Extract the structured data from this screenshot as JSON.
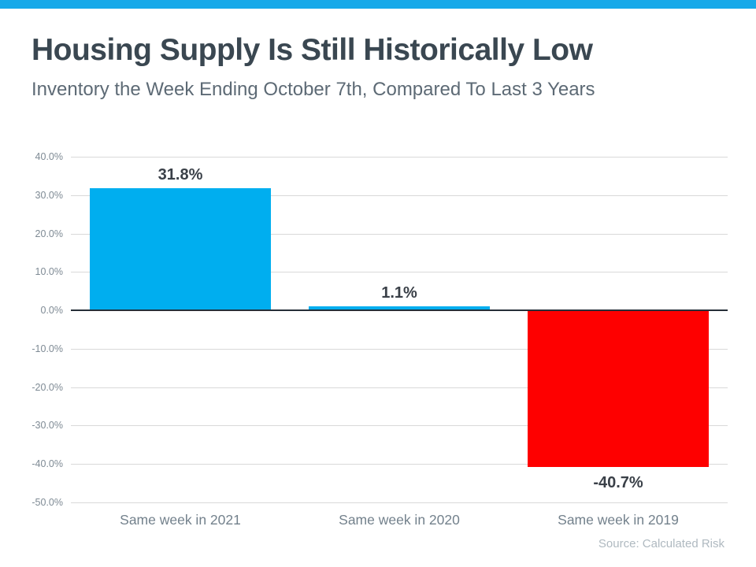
{
  "page": {
    "background": "#FFFFFF",
    "accent_bar_color": "#17A9E9"
  },
  "header": {
    "title": "Housing Supply Is Still Historically Low",
    "subtitle": "Inventory the Week Ending October 7th, Compared To Last 3 Years"
  },
  "chart_data": {
    "type": "bar",
    "title": "",
    "xlabel": "",
    "ylabel": "",
    "categories": [
      "Same week in 2021",
      "Same week in 2020",
      "Same week in 2019"
    ],
    "values": [
      31.8,
      1.1,
      -40.7
    ],
    "value_labels": [
      "31.8%",
      "1.1%",
      "-40.7%"
    ],
    "bar_colors": [
      "#00AEEF",
      "#00AEEF",
      "#FE0000"
    ],
    "ylim": [
      -50,
      40
    ],
    "ytick_step": 10,
    "ytick_labels": [
      "40.0%",
      "30.0%",
      "20.0%",
      "10.0%",
      "0.0%",
      "-10.0%",
      "-20.0%",
      "-30.0%",
      "-40.0%",
      "-50.0%"
    ],
    "grid": true,
    "legend": false,
    "style": {
      "grid_color": "#D9D9D9",
      "zero_line_color": "#262F38",
      "tick_label_color": "#7E8A94",
      "category_label_color": "#73818C",
      "value_label_color": "#3A4048"
    }
  },
  "footer": {
    "source": "Source: Calculated Risk"
  }
}
